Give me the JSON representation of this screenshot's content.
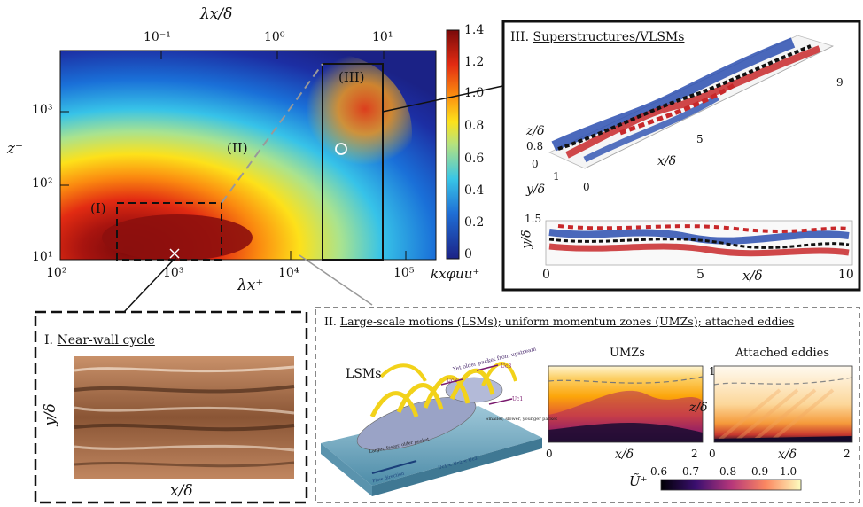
{
  "spectrum": {
    "top_axis_label": "λx/δ",
    "top_ticks": [
      "10⁻¹",
      "10⁰",
      "10¹"
    ],
    "y_axis_label": "z⁺",
    "y_ticks": [
      "10³",
      "10²",
      "10¹"
    ],
    "x_ticks": [
      "10²",
      "10³",
      "10⁴",
      "10⁵"
    ],
    "x_axis_label": "λx⁺",
    "region_labels": [
      "(I)",
      "(II)",
      "(III)"
    ],
    "colorbar": {
      "ticks": [
        "1.4",
        "1.2",
        "1.0",
        "0.8",
        "0.6",
        "0.4",
        "0.2",
        "0"
      ],
      "label": "kxφuu⁺"
    }
  },
  "panel_III": {
    "title_prefix": "III.",
    "title": "Superstructures/VLSMs",
    "top_labels": {
      "z_label": "z/δ",
      "z_value": "0.8",
      "zero": "0",
      "y_label": "y/δ",
      "one": "1",
      "x_zero": "0",
      "x_five": "5",
      "x_label": "x/δ",
      "x_nine": "9"
    },
    "bottom_labels": {
      "y_label": "y/δ",
      "y_value": "1.5",
      "x_zero": "0",
      "x_five": "5",
      "x_label": "x/δ",
      "x_ten": "10"
    }
  },
  "panel_I": {
    "title_prefix": "I.",
    "title": "Near-wall cycle",
    "y_label": "y/δ",
    "x_label": "x/δ"
  },
  "panel_II": {
    "title_prefix": "II.",
    "title": "Large-scale motions (LSMs); uniform momentum zones (UMZs); attached eddies",
    "lsm": {
      "label": "LSMs",
      "annot_top": "Yet older packet from upstream",
      "annot_mid": "Smaller, slower, younger packet",
      "annot_left": "Larger, faster, older packet",
      "annot_flow": "Flow direction",
      "annot_eq": "Uc1 < Uc2 < Uc3",
      "uc1": "Uc1",
      "uc2": "Uc2",
      "uc3": "Uc3"
    },
    "umz": {
      "title": "UMZs",
      "x_zero": "0",
      "x_label": "x/δ",
      "x_two": "2",
      "right_zero": "0",
      "z_one": "1",
      "z_label": "z/δ"
    },
    "attached": {
      "title": "Attached eddies",
      "x_label": "x/δ",
      "x_two": "2"
    },
    "colorbar": {
      "label": "Ũ⁺",
      "ticks": [
        "0.6",
        "0.7",
        "0.8",
        "0.9",
        "1.0"
      ]
    }
  }
}
